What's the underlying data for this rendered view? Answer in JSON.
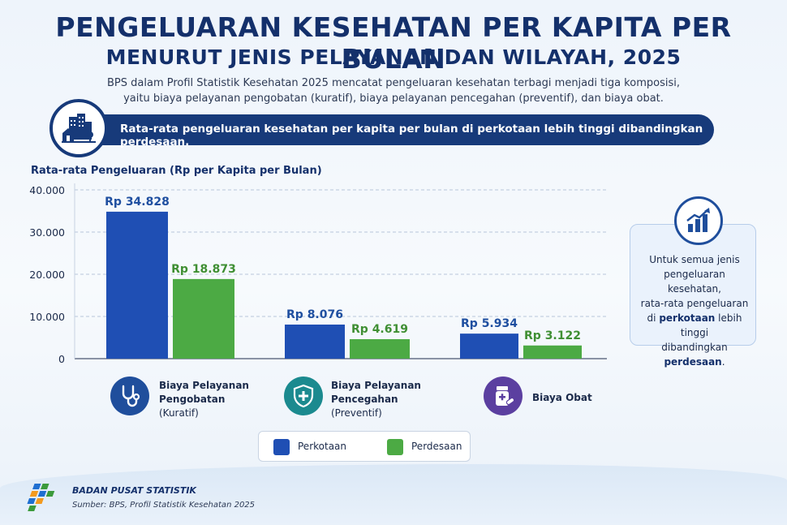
{
  "header": {
    "title_line1": "PENGELUARAN KESEHATAN PER KAPITA PER BULAN",
    "title_line2": "MENURUT JENIS PELAYANAN DAN WILAYAH, 2025",
    "description_line1": "BPS dalam Profil Statistik Kesehatan 2025 mencatat pengeluaran kesehatan terbagi menjadi tiga komposisi,",
    "description_line2": "yaitu biaya pelayanan pengobatan (kuratif), biaya pelayanan pencegahan (preventif), dan biaya obat."
  },
  "banner": {
    "text": "Rata-rata pengeluaran kesehatan per kapita per bulan di perkotaan lebih tinggi dibandingkan perdesaan.",
    "icon": "city-buildings-icon"
  },
  "chart_data": {
    "type": "bar",
    "title": "",
    "ylabel": "Rata-rata Pengeluaran (Rp per Kapita per Bulan)",
    "xlabel": "",
    "ylim": [
      0,
      40000
    ],
    "yticks": [
      0,
      10000,
      20000,
      30000,
      40000
    ],
    "ytick_labels": [
      "0",
      "10.000",
      "20.000",
      "30.000",
      "40.000"
    ],
    "grid": true,
    "categories": [
      {
        "line1": "Biaya Pelayanan",
        "line2": "Pengobatan",
        "line3": "(Kuratif)",
        "icon": "stethoscope-icon",
        "icon_color": "#1f4e9c"
      },
      {
        "line1": "Biaya Pelayanan",
        "line2": "Pencegahan",
        "line3": "(Preventif)",
        "icon": "shield-plus-icon",
        "icon_color": "#1b8a8f"
      },
      {
        "line1": "Biaya Obat",
        "line2": "",
        "line3": "",
        "icon": "medicine-bottle-icon",
        "icon_color": "#5b3fa0"
      }
    ],
    "series": [
      {
        "name": "Perkotaan",
        "color": "#1f4fb4",
        "label_color": "#1f4fa0",
        "values": [
          34828,
          8076,
          5934
        ],
        "labels": [
          "Rp 34.828",
          "Rp 8.076",
          "Rp 5.934"
        ]
      },
      {
        "name": "Perdesaan",
        "color": "#4caa44",
        "label_color": "#3f8f33",
        "values": [
          18873,
          4619,
          3122
        ],
        "labels": [
          "Rp 18.873",
          "Rp 4.619",
          "Rp 3.122"
        ]
      }
    ],
    "legend_position": "bottom-center"
  },
  "info_box": {
    "icon": "growth-chart-icon",
    "line1": "Untuk semua jenis",
    "line2": "pengeluaran kesehatan,",
    "line3": "rata-rata pengeluaran",
    "line4_pre": "di ",
    "line4_bold": "perkotaan",
    "line4_post": " lebih tinggi",
    "line5_pre": "dibandingkan ",
    "line5_bold": "perdesaan",
    "line5_post": "."
  },
  "footer": {
    "organization": "BADAN PUSAT STATISTIK",
    "source": "Sumber: BPS, Profil Statistik Kesehatan 2025",
    "logo": "bps-logo-icon"
  }
}
